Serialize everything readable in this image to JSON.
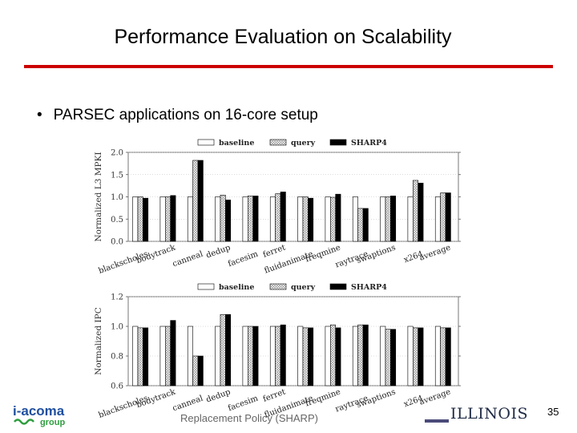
{
  "slide": {
    "title": "Performance Evaluation on Scalability",
    "bullet": "PARSEC applications on 16-core setup",
    "footer_text": "Replacement Policy (SHARP)",
    "page_number": "35",
    "logo_left_line1": "i-acoma",
    "logo_left_line2": "group",
    "logo_right": "ILLINOIS",
    "accent_color": "#cc0000"
  },
  "chart_data": [
    {
      "type": "bar",
      "ylabel": "Normalized L3 MPKI",
      "ylim": [
        0,
        2.0
      ],
      "yticks": [
        "0.0",
        "0.5",
        "1.0",
        "1.5",
        "2.0"
      ],
      "legend_position": "top",
      "categories": [
        "blackscholes",
        "bodytrack",
        "canneal",
        "dedup",
        "facesim",
        "ferret",
        "fluidanimate",
        "freqmine",
        "raytrace",
        "swaptions",
        "x264",
        "average"
      ],
      "series": [
        {
          "name": "baseline",
          "values": [
            1.0,
            1.0,
            1.0,
            1.0,
            1.0,
            1.0,
            1.0,
            1.0,
            1.0,
            1.0,
            1.0,
            1.0
          ]
        },
        {
          "name": "query",
          "values": [
            1.0,
            1.0,
            1.82,
            1.04,
            1.02,
            1.07,
            1.0,
            0.99,
            0.74,
            1.0,
            1.37,
            1.09
          ]
        },
        {
          "name": "SHARP4",
          "values": [
            0.97,
            1.03,
            1.82,
            0.93,
            1.02,
            1.11,
            0.97,
            1.06,
            0.74,
            1.02,
            1.31,
            1.09
          ]
        }
      ]
    },
    {
      "type": "bar",
      "ylabel": "Normalized IPC",
      "ylim": [
        0.6,
        1.2
      ],
      "yticks": [
        "0.6",
        "0.8",
        "1.0",
        "1.2"
      ],
      "legend_position": "top",
      "categories": [
        "blackscholes",
        "bodytrack",
        "canneal",
        "dedup",
        "facesim",
        "ferret",
        "fluidanimate",
        "freqmine",
        "raytrace",
        "swaptions",
        "x264",
        "average"
      ],
      "series": [
        {
          "name": "baseline",
          "values": [
            1.0,
            1.0,
            1.0,
            1.0,
            1.0,
            1.0,
            1.0,
            1.0,
            1.0,
            1.0,
            1.0,
            1.0
          ]
        },
        {
          "name": "query",
          "values": [
            0.99,
            1.0,
            0.8,
            1.08,
            1.0,
            1.0,
            0.99,
            1.01,
            1.01,
            0.98,
            0.99,
            0.99
          ]
        },
        {
          "name": "SHARP4",
          "values": [
            0.99,
            1.04,
            0.8,
            1.08,
            1.0,
            1.01,
            0.99,
            0.99,
            1.01,
            0.98,
            0.99,
            0.99
          ]
        }
      ]
    }
  ]
}
